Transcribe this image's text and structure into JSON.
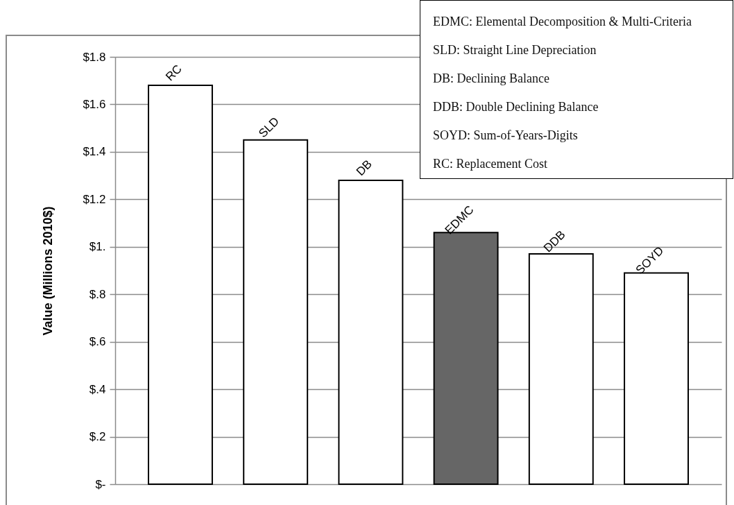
{
  "chart_data": {
    "type": "bar",
    "ylabel": "Value (Millions 2010$)",
    "categories": [
      "RC",
      "SLD",
      "DB",
      "EDMC",
      "DDB",
      "SOYD"
    ],
    "values": [
      1.68,
      1.45,
      1.28,
      1.06,
      0.97,
      0.89
    ],
    "colors": [
      "#ffffff",
      "#ffffff",
      "#ffffff",
      "#666666",
      "#ffffff",
      "#ffffff"
    ],
    "ylim": [
      0,
      1.8
    ],
    "yticks": [
      {
        "value": 0,
        "label": "$-"
      },
      {
        "value": 0.2,
        "label": "$.2"
      },
      {
        "value": 0.4,
        "label": "$.4"
      },
      {
        "value": 0.6,
        "label": "$.6"
      },
      {
        "value": 0.8,
        "label": "$.8"
      },
      {
        "value": 1,
        "label": "$1."
      },
      {
        "value": 1.2,
        "label": "$1.2"
      },
      {
        "value": 1.4,
        "label": "$1.4"
      },
      {
        "value": 1.6,
        "label": "$1.6"
      },
      {
        "value": 1.8,
        "label": "$1.8"
      }
    ],
    "grid": "y",
    "tick_labels": "y",
    "annotations": [
      "EDMC: Elemental Decomposition & Multi-Criteria",
      "SLD: Straight Line Depreciation",
      "DB: Declining Balance",
      "DDB: Double Declining Balance",
      "SOYD: Sum-of-Years-Digits",
      "RC: Replacement Cost"
    ]
  }
}
